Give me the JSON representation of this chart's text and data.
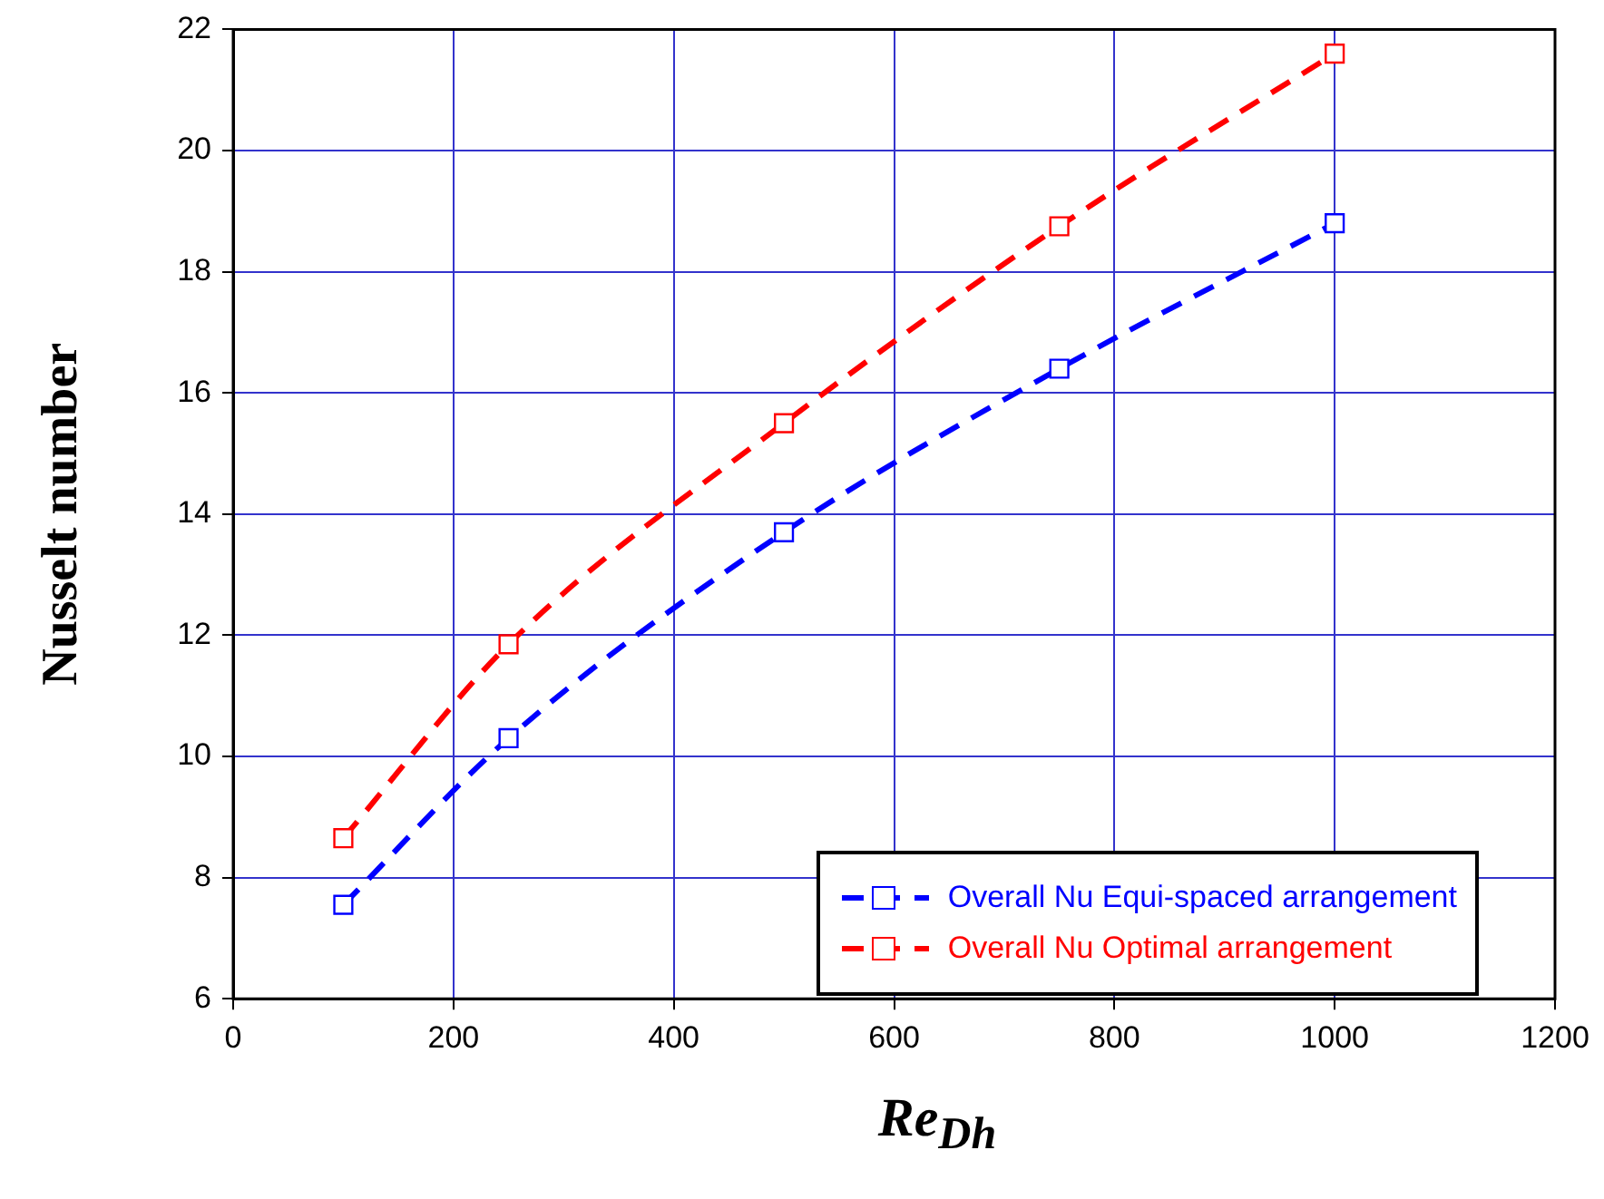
{
  "chart_data": {
    "type": "line",
    "xlabel": "Re$_{Dh}$",
    "ylabel": "Nusselt number",
    "x": [
      100,
      250,
      500,
      750,
      1000
    ],
    "series": [
      {
        "name": "Overall Nu Equi-spaced arrangement",
        "color": "#0000ff",
        "values": [
          7.55,
          10.3,
          13.7,
          16.4,
          18.8
        ]
      },
      {
        "name": "Overall Nu Optimal arrangement",
        "color": "#ff0000",
        "values": [
          8.65,
          11.85,
          15.5,
          18.75,
          21.6
        ]
      }
    ],
    "xlim": [
      0,
      1200
    ],
    "xticks": [
      0,
      200,
      400,
      600,
      800,
      1000,
      1200
    ],
    "ylim": [
      6,
      22
    ],
    "yticks": [
      6,
      8,
      10,
      12,
      14,
      16,
      18,
      20,
      22
    ],
    "grid": true,
    "legend": "bottom right",
    "marker": "square",
    "line_style": "dashed"
  }
}
